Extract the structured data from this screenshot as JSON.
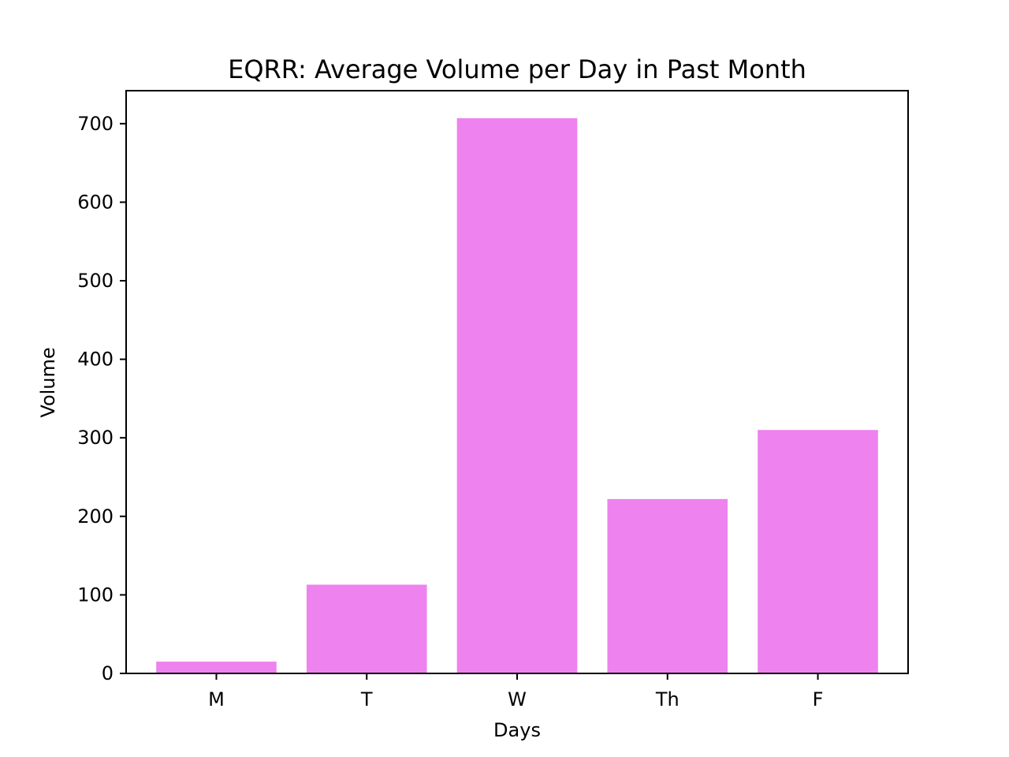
{
  "chart_data": {
    "type": "bar",
    "title": "EQRR: Average Volume per Day in Past Month",
    "xlabel": "Days",
    "ylabel": "Volume",
    "categories": [
      "M",
      "T",
      "W",
      "Th",
      "F"
    ],
    "values": [
      15,
      113,
      707,
      222,
      310
    ],
    "ylim": [
      0,
      742
    ],
    "yticks": [
      0,
      100,
      200,
      300,
      400,
      500,
      600,
      700
    ],
    "grid": false,
    "legend": "none",
    "bar_color": "#ee82ee"
  }
}
